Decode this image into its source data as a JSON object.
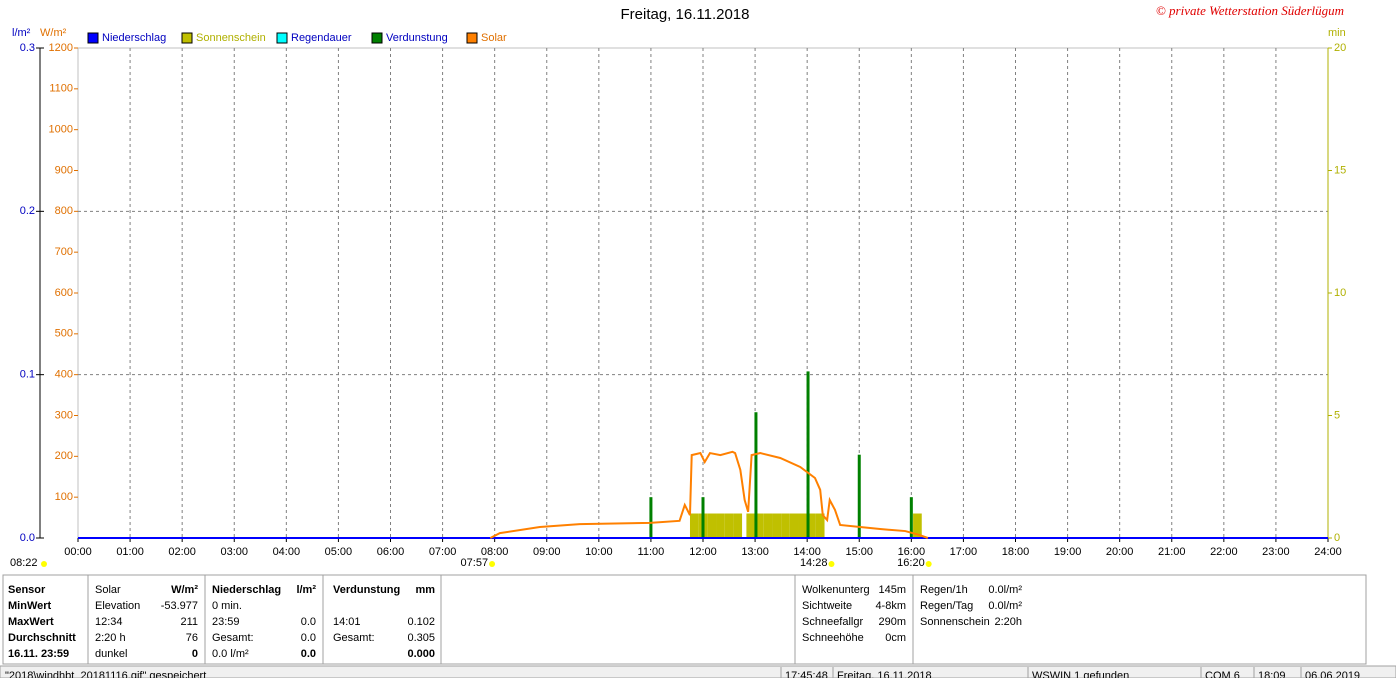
{
  "chart_data": {
    "type": "line",
    "title": "Freitag, 16.11.2018",
    "watermark": "© private Wetterstation Süderlügum",
    "ylabel": "l/m²",
    "y2label": "W/m²",
    "y3label": "min",
    "xlim": [
      0,
      1440
    ],
    "xticks": [
      {
        "value": 0,
        "label": "00:00"
      },
      {
        "value": 60,
        "label": "01:00"
      },
      {
        "value": 120,
        "label": "02:00"
      },
      {
        "value": 180,
        "label": "03:00"
      },
      {
        "value": 240,
        "label": "04:00"
      },
      {
        "value": 300,
        "label": "05:00"
      },
      {
        "value": 360,
        "label": "06:00"
      },
      {
        "value": 420,
        "label": "07:00"
      },
      {
        "value": 480,
        "label": "08:00"
      },
      {
        "value": 540,
        "label": "09:00"
      },
      {
        "value": 600,
        "label": "10:00"
      },
      {
        "value": 660,
        "label": "11:00"
      },
      {
        "value": 720,
        "label": "12:00"
      },
      {
        "value": 780,
        "label": "13:00"
      },
      {
        "value": 840,
        "label": "14:00"
      },
      {
        "value": 900,
        "label": "15:00"
      },
      {
        "value": 960,
        "label": "16:00"
      },
      {
        "value": 1020,
        "label": "17:00"
      },
      {
        "value": 1080,
        "label": "18:00"
      },
      {
        "value": 1140,
        "label": "19:00"
      },
      {
        "value": 1200,
        "label": "20:00"
      },
      {
        "value": 1260,
        "label": "21:00"
      },
      {
        "value": 1320,
        "label": "22:00"
      },
      {
        "value": 1380,
        "label": "23:00"
      },
      {
        "value": 1440,
        "label": "24:00"
      }
    ],
    "ylim": [
      0,
      0.3
    ],
    "yticks": [
      {
        "value": 0,
        "label": "0.0"
      },
      0.1,
      0.2,
      0.3
    ],
    "y2lim": [
      0,
      1200
    ],
    "y2ticks": [
      100,
      200,
      300,
      400,
      500,
      600,
      700,
      800,
      900,
      1000,
      1100,
      1200
    ],
    "y3lim": [
      0,
      20
    ],
    "y3ticks": [
      0,
      5,
      10,
      15,
      20
    ],
    "grid": true,
    "series": [
      {
        "name": "Niederschlag",
        "color": "#0000ff",
        "type": "line",
        "axis": "y",
        "x": [
          0,
          1440
        ],
        "values": [
          0,
          0
        ]
      },
      {
        "name": "Sonnenschein",
        "color": "#c0c000",
        "type": "bar",
        "axis": "y3",
        "x": [
          705,
          715,
          725,
          735,
          745,
          755,
          770,
          780,
          790,
          800,
          810,
          820,
          830,
          840,
          850,
          962
        ],
        "values": [
          1,
          1,
          1,
          1,
          1,
          1,
          1,
          1,
          1,
          1,
          1,
          1,
          1,
          1,
          1,
          1
        ]
      },
      {
        "name": "Regendauer",
        "color": "#00ffff",
        "type": "bar",
        "axis": "y3",
        "x": [],
        "values": []
      },
      {
        "name": "Verdunstung",
        "color": "#008000",
        "type": "bar",
        "axis": "y",
        "x": [
          660,
          720,
          781,
          841,
          900,
          960
        ],
        "values": [
          0.025,
          0.025,
          0.077,
          0.102,
          0.051,
          0.025
        ]
      },
      {
        "name": "Solar",
        "color": "#ff8000",
        "type": "line",
        "axis": "y2",
        "x": [
          475,
          486,
          532,
          578,
          659,
          693,
          699,
          705,
          707,
          717,
          722,
          728,
          740,
          754,
          757,
          763,
          768,
          772,
          776,
          786,
          809,
          832,
          849,
          855,
          858,
          863,
          866,
          872,
          878,
          901,
          924,
          953,
          970,
          979
        ],
        "values": [
          0,
          12,
          27,
          34,
          37,
          42,
          81,
          56,
          203,
          208,
          186,
          208,
          203,
          211,
          208,
          167,
          93,
          64,
          203,
          208,
          196,
          174,
          147,
          118,
          56,
          44,
          93,
          69,
          32,
          27,
          22,
          17,
          7,
          0
        ]
      }
    ],
    "annotations": [
      {
        "x": 477,
        "label": "07:57"
      },
      {
        "x": 868,
        "label": "14:28"
      },
      {
        "x": 980,
        "label": "16:20"
      }
    ],
    "day_length": "08:22"
  },
  "panel": {
    "groups": [
      {
        "header": [
          "Sensor"
        ],
        "rows": [
          {
            "left": "MinWert"
          },
          {
            "left": "MaxWert"
          },
          {
            "left": "Durchschnitt"
          },
          {
            "left": "16.11. 23:59"
          }
        ]
      },
      {
        "header": [
          "Solar",
          "W/m²"
        ],
        "rows": [
          {
            "left": "Elevation",
            "right": "-53.977"
          },
          {
            "left": "12:34",
            "right": "211"
          },
          {
            "left": "2:20 h",
            "right": "76"
          },
          {
            "left": "dunkel",
            "right": "0"
          }
        ]
      },
      {
        "header": [
          "Niederschlag",
          "l/m²"
        ],
        "rows": [
          {
            "left": "0 min."
          },
          {
            "left": "23:59",
            "right": "0.0"
          },
          {
            "left": "Gesamt:",
            "right": "0.0"
          },
          {
            "left": "0.0 l/m²",
            "right": "0.0"
          }
        ]
      },
      {
        "header": [
          "Verdunstung",
          "mm"
        ],
        "rows": [
          {},
          {
            "left": "14:01",
            "right": "0.102"
          },
          {
            "left": "Gesamt:",
            "right": "0.305"
          },
          {
            "right": "0.000"
          }
        ]
      },
      {
        "rows": [
          {
            "left": "Wolkenunterg",
            "right": "145m"
          },
          {
            "left": "Sichtweite",
            "right": "4-8km"
          },
          {
            "left": "Schneefallgr",
            "right": "290m"
          },
          {
            "left": "Schneehöhe",
            "right": "0cm"
          }
        ]
      },
      {
        "rows": [
          {
            "left": "Regen/1h",
            "right": "0.0l/m²"
          },
          {
            "left": "Regen/Tag",
            "right": "0.0l/m²"
          },
          {
            "left": "Sonnenschein",
            "right": "2:20h"
          }
        ]
      }
    ]
  },
  "status_bar": [
    "\"2018\\windhbt_20181116.gif\" gespeichert",
    "17:45:48",
    "Freitag, 16.11.2018",
    "WSWIN 1 gefunden",
    "COM 6",
    "18:09",
    "06.06.2019"
  ]
}
